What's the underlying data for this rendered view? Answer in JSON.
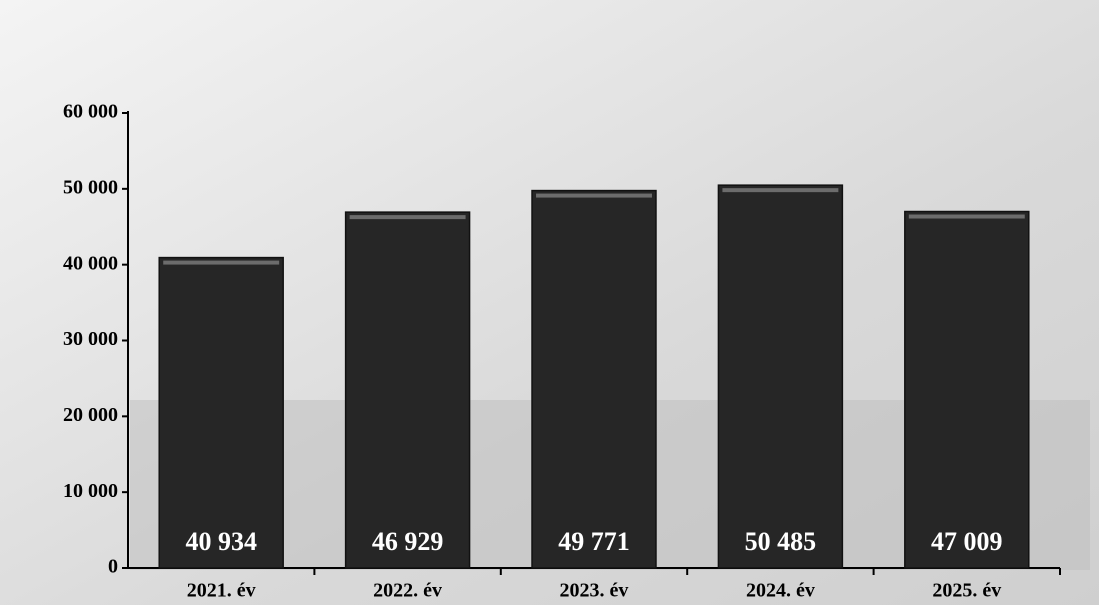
{
  "chart_data": {
    "type": "bar",
    "categories": [
      "2021. év",
      "2022. év",
      "2023. év",
      "2024. év",
      "2025. év"
    ],
    "values": [
      40934,
      46929,
      49771,
      50485,
      47009
    ],
    "value_labels": [
      "40 934",
      "46 929",
      "49 771",
      "50 485",
      "47 009"
    ],
    "color": "#262626",
    "ylim": [
      0,
      60000
    ],
    "yticks": [
      0,
      {
        "value": 10000,
        "label": "10 000"
      },
      {
        "value": 20000,
        "label": "20 000"
      },
      {
        "value": 30000,
        "label": "30 000"
      },
      {
        "value": 40000,
        "label": "40 000"
      },
      {
        "value": 50000,
        "label": "50 000"
      },
      {
        "value": 60000,
        "label": "60 000"
      }
    ],
    "grid": false
  }
}
